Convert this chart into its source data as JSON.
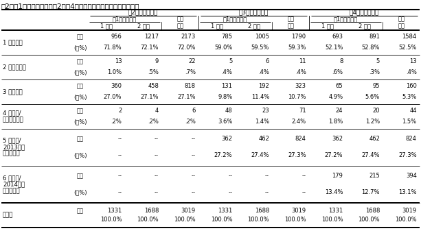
{
  "title": "表2　第1回の調査法別の第2～第4回調査の協力・脱落の状況の要約",
  "col_groups": [
    "第2回調査の結果",
    "第3回調査の結果",
    "第4回調査の結果"
  ],
  "sub_header": "第1回調査種別",
  "col_headers": [
    "1 面接",
    "2 留置",
    "合計"
  ],
  "row_categories": [
    "1 有効回収",
    "2 返送後無効",
    "3 返送なし",
    "4 未送付/\n送付前の辞退",
    "5 未送付/\n2013年度\nまでに辞退",
    "6 未送付/\n2014年度\nまでに辞退",
    "合　計"
  ],
  "sub_labels": [
    "度数",
    "(列%)",
    "度数",
    "(列%)",
    "度数",
    "(列%)",
    "度数",
    "(列%)",
    "度数",
    "(列%)",
    "度数",
    "(列%)",
    "度数",
    ""
  ],
  "data": [
    [
      "956",
      "1217",
      "2173",
      "785",
      "1005",
      "1790",
      "693",
      "891",
      "1584"
    ],
    [
      "71.8%",
      "72.1%",
      "72.0%",
      "59.0%",
      "59.5%",
      "59.3%",
      "52.1%",
      "52.8%",
      "52.5%"
    ],
    [
      "13",
      "9",
      "22",
      "5",
      "6",
      "11",
      "8",
      "5",
      "13"
    ],
    [
      "1.0%",
      ".5%",
      ".7%",
      ".4%",
      ".4%",
      ".4%",
      ".6%",
      ".3%",
      ".4%"
    ],
    [
      "360",
      "458",
      "818",
      "131",
      "192",
      "323",
      "65",
      "95",
      "160"
    ],
    [
      "27.0%",
      "27.1%",
      "27.1%",
      "9.8%",
      "11.4%",
      "10.7%",
      "4.9%",
      "5.6%",
      "5.3%"
    ],
    [
      "2",
      "4",
      "6",
      "48",
      "23",
      "71",
      "24",
      "20",
      "44"
    ],
    [
      ".2%",
      ".2%",
      ".2%",
      "3.6%",
      "1.4%",
      "2.4%",
      "1.8%",
      "1.2%",
      "1.5%"
    ],
    [
      "--",
      "--",
      "--",
      "362",
      "462",
      "824",
      "362",
      "462",
      "824"
    ],
    [
      "--",
      "--",
      "--",
      "27.2%",
      "27.4%",
      "27.3%",
      "27.2%",
      "27.4%",
      "27.3%"
    ],
    [
      "--",
      "--",
      "--",
      "--",
      "--",
      "--",
      "179",
      "215",
      "394"
    ],
    [
      "--",
      "--",
      "--",
      "--",
      "--",
      "--",
      "13.4%",
      "12.7%",
      "13.1%"
    ],
    [
      "1331",
      "1688",
      "3019",
      "1331",
      "1688",
      "3019",
      "1331",
      "1688",
      "3019"
    ],
    [
      "100.0%",
      "100.0%",
      "100.0%",
      "100.0%",
      "100.0%",
      "100.0%",
      "100.0%",
      "100.0%",
      "100.0%"
    ]
  ],
  "row_group_heights": [
    2,
    2,
    2,
    2,
    3,
    3,
    2
  ],
  "bg_color": "#ffffff"
}
